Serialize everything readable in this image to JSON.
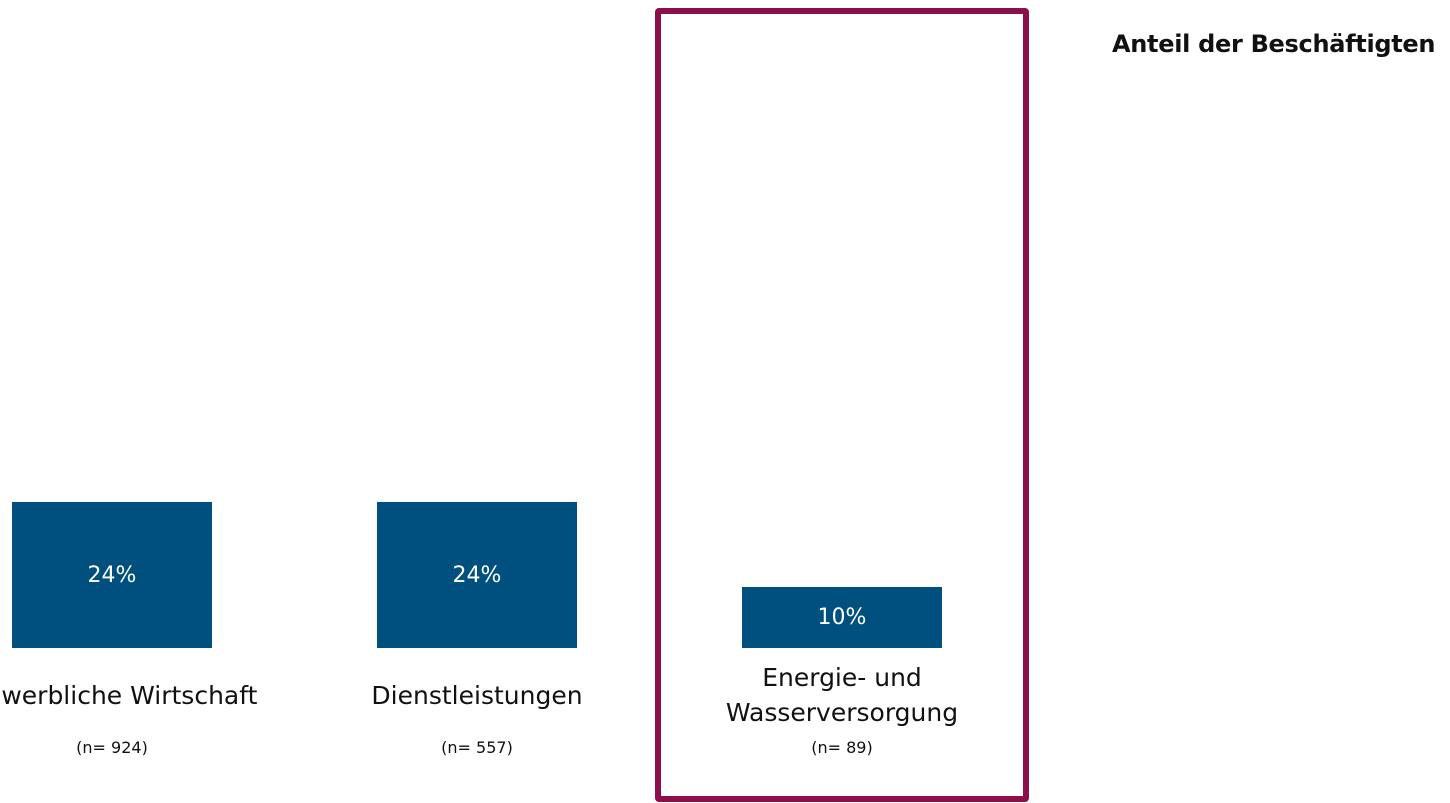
{
  "chart_data": {
    "type": "bar",
    "title": "Anteil der Beschäftigten",
    "categories": [
      "Gewerbliche Wirtschaft",
      "Dienstleistungen",
      "Energie- und Wasserversorgung"
    ],
    "values": [
      24,
      24,
      10
    ],
    "value_labels": [
      "24%",
      "24%",
      "10%"
    ],
    "annotations": [
      "(n= 924)",
      "(n= 557)",
      "(n= 89)"
    ],
    "color": "#00507f",
    "ylim": [
      0,
      100
    ],
    "highlight": 2,
    "highlight_color": "#8b0f4b"
  }
}
